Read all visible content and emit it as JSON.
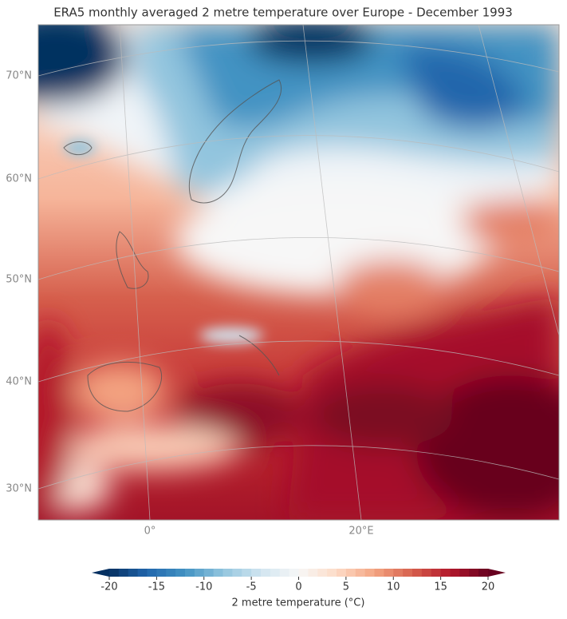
{
  "header": {
    "title": "ERA5 monthly averaged 2 metre temperature over Europe - December 1993"
  },
  "map": {
    "lat_labels": [
      "70°N",
      "60°N",
      "50°N",
      "40°N",
      "30°N"
    ],
    "lon_labels": [
      "0°",
      "20°E"
    ]
  },
  "colorbar": {
    "label": "2 metre temperature (°C)",
    "lim": [
      -20,
      20
    ],
    "ticks": [
      -20,
      -15,
      -10,
      -5,
      0,
      5,
      10,
      15,
      20
    ],
    "colormap": "RdBu_r"
  }
}
